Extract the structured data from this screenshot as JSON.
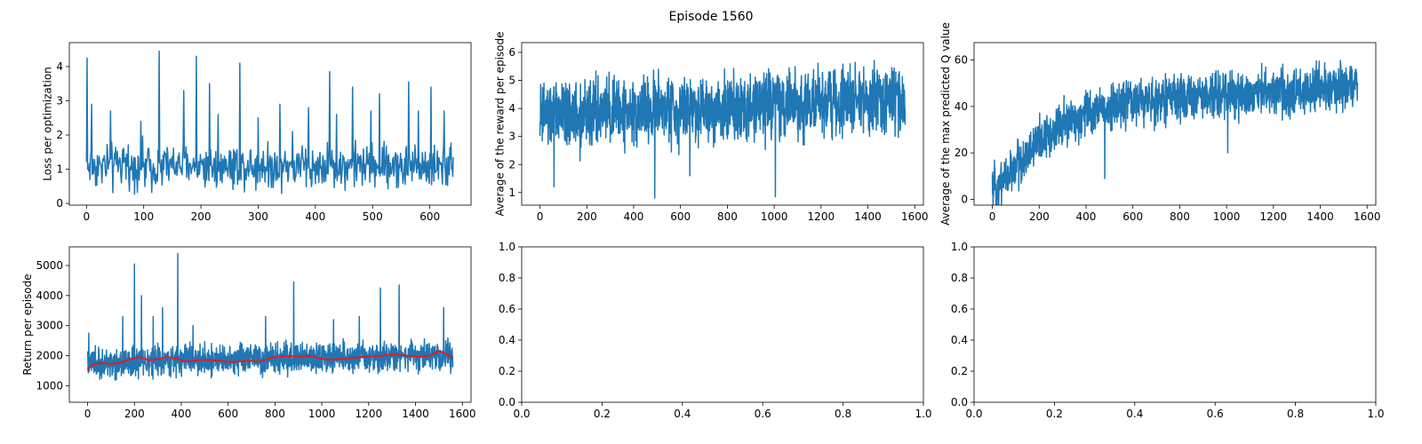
{
  "figure": {
    "title": "Episode 1560"
  },
  "colors": {
    "series": "#1f77b4",
    "moving_average": "#e31a1c",
    "axes": "#000000",
    "background": "#ffffff"
  },
  "chart_data": [
    {
      "id": "loss",
      "type": "line",
      "xlabel": "",
      "ylabel": "Loss per optimization",
      "xlim": [
        -30,
        672
      ],
      "ylim": [
        -0.05,
        4.7
      ],
      "xticks": [
        0,
        100,
        200,
        300,
        400,
        500,
        600
      ],
      "yticks": [
        0,
        1,
        2,
        3,
        4
      ],
      "series": [
        {
          "name": "loss",
          "n_points": 642,
          "x_range": [
            0,
            641
          ],
          "spikes": [
            [
              1,
              4.25
            ],
            [
              9,
              2.9
            ],
            [
              42,
              2.7
            ],
            [
              95,
              2.4
            ],
            [
              127,
              4.45
            ],
            [
              170,
              3.3
            ],
            [
              192,
              4.3
            ],
            [
              215,
              3.5
            ],
            [
              230,
              2.6
            ],
            [
              268,
              4.1
            ],
            [
              300,
              2.5
            ],
            [
              338,
              2.9
            ],
            [
              360,
              2.1
            ],
            [
              388,
              2.8
            ],
            [
              425,
              3.85
            ],
            [
              437,
              2.6
            ],
            [
              465,
              3.4
            ],
            [
              497,
              2.7
            ],
            [
              512,
              3.2
            ],
            [
              563,
              3.55
            ],
            [
              580,
              2.7
            ],
            [
              602,
              3.4
            ],
            [
              625,
              2.7
            ]
          ],
          "baseline": 1.1,
          "amplitude": 0.6,
          "floor": 0.2
        }
      ]
    },
    {
      "id": "avg_reward",
      "type": "line",
      "xlabel": "",
      "ylabel": "Average of the reward per episode",
      "xlim": [
        -78,
        1637
      ],
      "ylim": [
        0.55,
        6.35
      ],
      "xticks": [
        0,
        200,
        400,
        600,
        800,
        1000,
        1200,
        1400,
        1600
      ],
      "yticks": [
        1,
        2,
        3,
        4,
        5,
        6
      ],
      "series": [
        {
          "name": "average reward",
          "n_points": 1560,
          "x_range": [
            0,
            1559
          ],
          "trend": [
            [
              0,
              3.7
            ],
            [
              400,
              3.9
            ],
            [
              800,
              4.1
            ],
            [
              1200,
              4.2
            ],
            [
              1559,
              4.3
            ]
          ],
          "amplitude": 1.1,
          "max": 6.1,
          "min_spikes": [
            [
              60,
              1.2
            ],
            [
              490,
              0.8
            ],
            [
              1005,
              0.85
            ],
            [
              640,
              1.6
            ]
          ]
        }
      ]
    },
    {
      "id": "max_q",
      "type": "line",
      "xlabel": "",
      "ylabel": "Average of the max predicted Q value",
      "xlim": [
        -78,
        1637
      ],
      "ylim": [
        -2.5,
        67.5
      ],
      "xticks": [
        0,
        200,
        400,
        600,
        800,
        1000,
        1200,
        1400,
        1600
      ],
      "yticks": [
        0,
        20,
        40,
        60
      ],
      "series": [
        {
          "name": "max predicted Q",
          "n_points": 1560,
          "x_range": [
            0,
            1559
          ],
          "trend": [
            [
              0,
              4
            ],
            [
              100,
              14
            ],
            [
              200,
              25
            ],
            [
              300,
              32
            ],
            [
              400,
              37
            ],
            [
              600,
              42
            ],
            [
              800,
              44
            ],
            [
              1000,
              45
            ],
            [
              1200,
              46
            ],
            [
              1400,
              47
            ],
            [
              1559,
              48
            ]
          ],
          "amplitude": 9,
          "max": 64,
          "min_spikes": [
            [
              480,
              9
            ],
            [
              1005,
              20
            ]
          ]
        }
      ]
    },
    {
      "id": "return",
      "type": "line",
      "xlabel": "",
      "ylabel": "Return per episode",
      "xlim": [
        -78,
        1637
      ],
      "ylim": [
        450,
        5620
      ],
      "xticks": [
        0,
        200,
        400,
        600,
        800,
        1000,
        1200,
        1400,
        1600
      ],
      "yticks": [
        1000,
        2000,
        3000,
        4000,
        5000
      ],
      "series": [
        {
          "name": "return",
          "n_points": 1560,
          "x_range": [
            0,
            1559
          ],
          "trend": [
            [
              0,
              1700
            ],
            [
              400,
              1850
            ],
            [
              800,
              1900
            ],
            [
              1200,
              1950
            ],
            [
              1559,
              2000
            ]
          ],
          "amplitude": 450,
          "floor": 650,
          "spikes": [
            [
              5,
              2750
            ],
            [
              150,
              3300
            ],
            [
              200,
              5050
            ],
            [
              230,
              4000
            ],
            [
              280,
              3300
            ],
            [
              320,
              3600
            ],
            [
              385,
              5400
            ],
            [
              450,
              3000
            ],
            [
              760,
              3300
            ],
            [
              880,
              4450
            ],
            [
              1050,
              3200
            ],
            [
              1160,
              3300
            ],
            [
              1250,
              4250
            ],
            [
              1330,
              4350
            ],
            [
              1520,
              3600
            ]
          ]
        },
        {
          "name": "moving average",
          "points": [
            [
              0,
              1530
            ],
            [
              20,
              1700
            ],
            [
              60,
              1760
            ],
            [
              100,
              1720
            ],
            [
              140,
              1780
            ],
            [
              180,
              1870
            ],
            [
              220,
              1960
            ],
            [
              260,
              1850
            ],
            [
              300,
              1880
            ],
            [
              340,
              1960
            ],
            [
              380,
              1900
            ],
            [
              420,
              1800
            ],
            [
              460,
              1840
            ],
            [
              500,
              1860
            ],
            [
              560,
              1830
            ],
            [
              620,
              1790
            ],
            [
              680,
              1830
            ],
            [
              740,
              1810
            ],
            [
              780,
              1920
            ],
            [
              820,
              1980
            ],
            [
              860,
              1990
            ],
            [
              900,
              1960
            ],
            [
              940,
              2000
            ],
            [
              980,
              1930
            ],
            [
              1020,
              1870
            ],
            [
              1060,
              1880
            ],
            [
              1100,
              1900
            ],
            [
              1140,
              1930
            ],
            [
              1180,
              1960
            ],
            [
              1220,
              1980
            ],
            [
              1260,
              2000
            ],
            [
              1300,
              2040
            ],
            [
              1340,
              2020
            ],
            [
              1380,
              1990
            ],
            [
              1420,
              1960
            ],
            [
              1460,
              2000
            ],
            [
              1500,
              2150
            ],
            [
              1530,
              2060
            ],
            [
              1559,
              1920
            ]
          ]
        }
      ]
    },
    {
      "id": "empty_1",
      "type": "line",
      "xlim": [
        0,
        1
      ],
      "ylim": [
        0,
        1
      ],
      "xticks": [
        0.0,
        0.2,
        0.4,
        0.6,
        0.8,
        1.0
      ],
      "yticks": [
        0.0,
        0.2,
        0.4,
        0.6,
        0.8,
        1.0
      ],
      "tick_labels_x": [
        "0.0",
        "0.2",
        "0.4",
        "0.6",
        "0.8",
        "1.0"
      ],
      "tick_labels_y": [
        "0.0",
        "0.2",
        "0.4",
        "0.6",
        "0.8",
        "1.0"
      ],
      "series": []
    },
    {
      "id": "empty_2",
      "type": "line",
      "xlim": [
        0,
        1
      ],
      "ylim": [
        0,
        1
      ],
      "xticks": [
        0.0,
        0.2,
        0.4,
        0.6,
        0.8,
        1.0
      ],
      "yticks": [
        0.0,
        0.2,
        0.4,
        0.6,
        0.8,
        1.0
      ],
      "tick_labels_x": [
        "0.0",
        "0.2",
        "0.4",
        "0.6",
        "0.8",
        "1.0"
      ],
      "tick_labels_y": [
        "0.0",
        "0.2",
        "0.4",
        "0.6",
        "0.8",
        "1.0"
      ],
      "series": []
    }
  ]
}
